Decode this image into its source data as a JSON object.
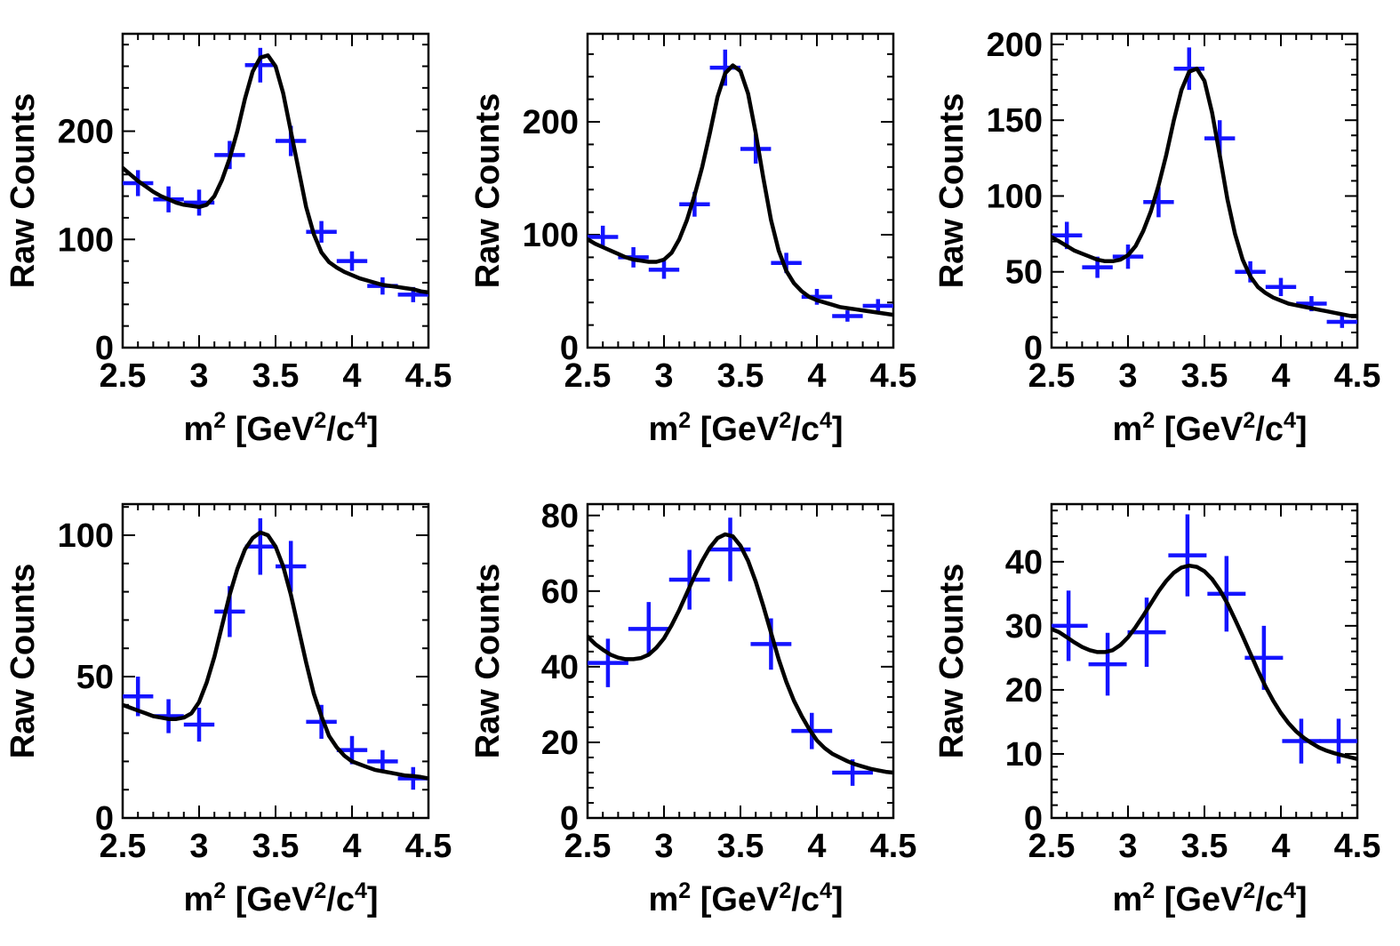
{
  "colors": {
    "data": "#1414ff",
    "fit": "#000000",
    "frame": "#000000"
  },
  "chart_data": [
    {
      "type": "line",
      "xlabel": "m² [GeV²/c⁴]",
      "ylabel": "Raw Counts",
      "xlim": [
        2.5,
        4.5
      ],
      "ylim": [
        0,
        290
      ],
      "xticks": [
        2.5,
        3,
        3.5,
        4,
        4.5
      ],
      "yticks": [
        0,
        100,
        200
      ],
      "series": [
        {
          "kind": "data",
          "x": [
            2.6,
            2.8,
            3.0,
            3.2,
            3.4,
            3.6,
            3.8,
            4.0,
            4.2,
            4.4
          ],
          "y": [
            152,
            137,
            134,
            178,
            261,
            191,
            107,
            80,
            57,
            49
          ],
          "xerr": 0.1,
          "yerr": [
            12,
            12,
            12,
            13,
            16,
            14,
            10,
            9,
            8,
            7
          ]
        },
        {
          "kind": "fit",
          "x": [
            2.5,
            2.55,
            2.6,
            2.65,
            2.7,
            2.75,
            2.8,
            2.85,
            2.9,
            2.95,
            3.0,
            3.05,
            3.1,
            3.15,
            3.2,
            3.25,
            3.3,
            3.35,
            3.4,
            3.45,
            3.5,
            3.55,
            3.6,
            3.65,
            3.7,
            3.75,
            3.8,
            3.85,
            3.9,
            3.95,
            4.0,
            4.05,
            4.1,
            4.15,
            4.2,
            4.25,
            4.3,
            4.35,
            4.4,
            4.45,
            4.5
          ],
          "y": [
            166,
            160,
            154,
            149,
            144,
            140,
            137,
            134,
            132,
            131,
            130,
            132,
            140,
            155,
            175,
            200,
            230,
            255,
            268,
            270,
            260,
            235,
            200,
            165,
            130,
            105,
            88,
            79,
            74,
            70,
            67,
            64,
            62,
            60,
            58,
            57,
            56,
            55,
            54,
            52,
            51
          ]
        }
      ]
    },
    {
      "type": "line",
      "xlabel": "m² [GeV²/c⁴]",
      "ylabel": "Raw Counts",
      "xlim": [
        2.5,
        4.5
      ],
      "ylim": [
        0,
        278
      ],
      "xticks": [
        2.5,
        3,
        3.5,
        4,
        4.5
      ],
      "yticks": [
        0,
        100,
        200
      ],
      "series": [
        {
          "kind": "data",
          "x": [
            2.6,
            2.8,
            3.0,
            3.2,
            3.4,
            3.6,
            3.8,
            4.0,
            4.2,
            4.4
          ],
          "y": [
            98,
            80,
            69,
            127,
            248,
            176,
            75,
            45,
            28,
            37
          ],
          "xerr": 0.1,
          "yerr": [
            10,
            9,
            8,
            11,
            16,
            13,
            9,
            7,
            5,
            6
          ]
        },
        {
          "kind": "fit",
          "x": [
            2.5,
            2.55,
            2.6,
            2.65,
            2.7,
            2.75,
            2.8,
            2.85,
            2.9,
            2.95,
            3.0,
            3.05,
            3.1,
            3.15,
            3.2,
            3.25,
            3.3,
            3.35,
            3.4,
            3.45,
            3.5,
            3.55,
            3.6,
            3.65,
            3.7,
            3.75,
            3.8,
            3.85,
            3.9,
            3.95,
            4.0,
            4.05,
            4.1,
            4.15,
            4.2,
            4.25,
            4.3,
            4.35,
            4.4,
            4.45,
            4.5
          ],
          "y": [
            96,
            92,
            89,
            86,
            83,
            80,
            78,
            77,
            76,
            76,
            78,
            84,
            96,
            113,
            135,
            160,
            190,
            222,
            243,
            250,
            245,
            225,
            190,
            150,
            113,
            86,
            68,
            57,
            50,
            45,
            42,
            40,
            38,
            36,
            35,
            34,
            33,
            32,
            31,
            30,
            29
          ]
        }
      ]
    },
    {
      "type": "line",
      "xlabel": "m² [GeV²/c⁴]",
      "ylabel": "Raw Counts",
      "xlim": [
        2.5,
        4.5
      ],
      "ylim": [
        0,
        207
      ],
      "xticks": [
        2.5,
        3,
        3.5,
        4,
        4.5
      ],
      "yticks": [
        0,
        50,
        100,
        150,
        200
      ],
      "series": [
        {
          "kind": "data",
          "x": [
            2.6,
            2.8,
            3.0,
            3.2,
            3.4,
            3.6,
            3.8,
            4.0,
            4.2,
            4.4
          ],
          "y": [
            74,
            53,
            60,
            96,
            184,
            138,
            50,
            40,
            29,
            17
          ],
          "xerr": 0.1,
          "yerr": [
            9,
            7,
            8,
            10,
            14,
            12,
            7,
            6,
            5,
            4
          ]
        },
        {
          "kind": "fit",
          "x": [
            2.5,
            2.55,
            2.6,
            2.65,
            2.7,
            2.75,
            2.8,
            2.85,
            2.9,
            2.95,
            3.0,
            3.05,
            3.1,
            3.15,
            3.2,
            3.25,
            3.3,
            3.35,
            3.4,
            3.45,
            3.5,
            3.55,
            3.6,
            3.65,
            3.7,
            3.75,
            3.8,
            3.85,
            3.9,
            3.95,
            4.0,
            4.05,
            4.1,
            4.15,
            4.2,
            4.25,
            4.3,
            4.35,
            4.4,
            4.45,
            4.5
          ],
          "y": [
            73,
            70,
            67,
            64,
            62,
            60,
            58,
            57,
            57,
            58,
            61,
            67,
            77,
            90,
            107,
            127,
            150,
            170,
            182,
            184,
            176,
            155,
            127,
            98,
            75,
            58,
            47,
            40,
            36,
            33,
            31,
            29,
            28,
            27,
            26,
            25,
            24,
            23,
            22,
            21,
            21
          ]
        }
      ]
    },
    {
      "type": "line",
      "xlabel": "m² [GeV²/c⁴]",
      "ylabel": "Raw Counts",
      "xlim": [
        2.5,
        4.5
      ],
      "ylim": [
        0,
        111
      ],
      "xticks": [
        2.5,
        3,
        3.5,
        4,
        4.5
      ],
      "yticks": [
        0,
        50,
        100
      ],
      "series": [
        {
          "kind": "data",
          "x": [
            2.6,
            2.8,
            3.0,
            3.2,
            3.4,
            3.6,
            3.8,
            4.0,
            4.2,
            4.4
          ],
          "y": [
            43,
            36,
            33,
            73,
            96,
            89,
            34,
            24,
            20,
            14
          ],
          "xerr": 0.1,
          "yerr": [
            7,
            6,
            6,
            9,
            10,
            9,
            6,
            5,
            4,
            4
          ]
        },
        {
          "kind": "fit",
          "x": [
            2.5,
            2.55,
            2.6,
            2.65,
            2.7,
            2.75,
            2.8,
            2.85,
            2.9,
            2.95,
            3.0,
            3.05,
            3.1,
            3.15,
            3.2,
            3.25,
            3.3,
            3.35,
            3.4,
            3.45,
            3.5,
            3.55,
            3.6,
            3.65,
            3.7,
            3.75,
            3.8,
            3.85,
            3.9,
            3.95,
            4.0,
            4.05,
            4.1,
            4.15,
            4.2,
            4.25,
            4.3,
            4.35,
            4.4,
            4.45,
            4.5
          ],
          "y": [
            40,
            39,
            38,
            37,
            36,
            35.5,
            35,
            35,
            35.5,
            37,
            41,
            48,
            57,
            68,
            79,
            88,
            95,
            99,
            101,
            100,
            96,
            89,
            79,
            67,
            55,
            44,
            36,
            29,
            25,
            22,
            20,
            19,
            18,
            17,
            16.5,
            16,
            15.5,
            15,
            14.8,
            14.5,
            14
          ]
        }
      ]
    },
    {
      "type": "line",
      "xlabel": "m² [GeV²/c⁴]",
      "ylabel": "Raw Counts",
      "xlim": [
        2.5,
        4.5
      ],
      "ylim": [
        0,
        83
      ],
      "xticks": [
        2.5,
        3,
        3.5,
        4,
        4.5
      ],
      "yticks": [
        0,
        20,
        40,
        60,
        80
      ],
      "series": [
        {
          "kind": "data",
          "x": [
            2.6333,
            2.9,
            3.1667,
            3.4333,
            3.7,
            3.9667,
            4.2333
          ],
          "y": [
            41,
            50,
            63,
            71,
            46,
            23,
            12
          ],
          "xerr": 0.1333,
          "yerr": [
            6.4,
            7.1,
            7.9,
            8.4,
            6.8,
            4.8,
            3.5
          ]
        },
        {
          "kind": "fit",
          "x": [
            2.5,
            2.55,
            2.6,
            2.65,
            2.7,
            2.75,
            2.8,
            2.85,
            2.9,
            2.95,
            3.0,
            3.05,
            3.1,
            3.15,
            3.2,
            3.25,
            3.3,
            3.35,
            3.4,
            3.45,
            3.5,
            3.55,
            3.6,
            3.65,
            3.7,
            3.75,
            3.8,
            3.85,
            3.9,
            3.95,
            4.0,
            4.05,
            4.1,
            4.15,
            4.2,
            4.25,
            4.3,
            4.35,
            4.4,
            4.45,
            4.5
          ],
          "y": [
            48,
            46,
            44.5,
            43.2,
            42.4,
            42,
            42,
            42.3,
            43.2,
            45,
            47.5,
            51,
            55,
            59.5,
            64,
            68,
            71.5,
            74,
            75,
            74.5,
            72,
            68,
            62.5,
            56,
            49,
            42,
            36,
            31,
            27,
            23.5,
            20.5,
            18.5,
            17,
            16,
            15,
            14.2,
            13.6,
            13,
            12.6,
            12.2,
            12
          ]
        }
      ]
    },
    {
      "type": "line",
      "xlabel": "m² [GeV²/c⁴]",
      "ylabel": "Raw Counts",
      "xlim": [
        2.5,
        4.5
      ],
      "ylim": [
        0,
        49
      ],
      "xticks": [
        2.5,
        3,
        3.5,
        4,
        4.5
      ],
      "yticks": [
        0,
        10,
        20,
        30,
        40
      ],
      "series": [
        {
          "kind": "data",
          "x": [
            2.6111,
            2.8667,
            3.1222,
            3.3889,
            3.6444,
            3.8889,
            4.1333,
            4.3778
          ],
          "y": [
            30,
            24,
            29,
            41,
            35,
            25,
            12,
            12
          ],
          "xerr": 0.125,
          "yerr": [
            5.5,
            4.9,
            5.4,
            6.4,
            5.9,
            5,
            3.5,
            3.5
          ]
        },
        {
          "kind": "fit",
          "x": [
            2.5,
            2.55,
            2.6,
            2.65,
            2.7,
            2.75,
            2.8,
            2.85,
            2.9,
            2.95,
            3.0,
            3.05,
            3.1,
            3.15,
            3.2,
            3.25,
            3.3,
            3.35,
            3.4,
            3.45,
            3.5,
            3.55,
            3.6,
            3.65,
            3.7,
            3.75,
            3.8,
            3.85,
            3.9,
            3.95,
            4.0,
            4.05,
            4.1,
            4.15,
            4.2,
            4.25,
            4.3,
            4.35,
            4.4,
            4.45,
            4.5
          ],
          "y": [
            29.5,
            29,
            28.2,
            27.4,
            26.7,
            26.2,
            25.9,
            25.9,
            26.2,
            27,
            28.2,
            29.8,
            31.6,
            33.5,
            35.4,
            37,
            38.3,
            39.1,
            39.4,
            39.2,
            38.5,
            37.3,
            35.6,
            33.5,
            31,
            28.4,
            25.7,
            23,
            20.5,
            18.3,
            16.4,
            14.8,
            13.5,
            12.5,
            11.7,
            11,
            10.5,
            10.1,
            9.8,
            9.5,
            9.2
          ]
        }
      ]
    }
  ]
}
